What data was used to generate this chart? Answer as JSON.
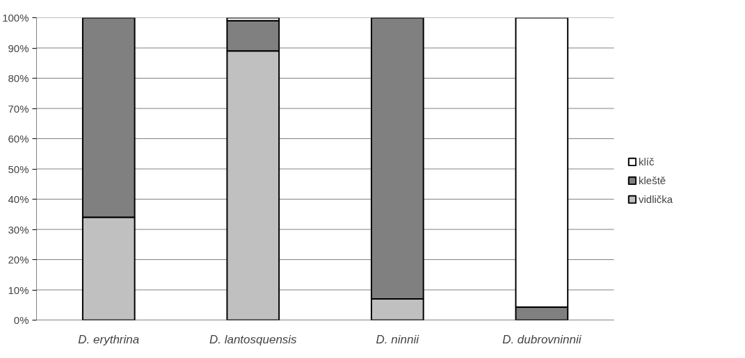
{
  "chart_data": {
    "type": "bar",
    "stacked": true,
    "categories": [
      "D. erythrina",
      "D. lantosquensis",
      "D. ninnii",
      "D. dubrovninnii"
    ],
    "series": [
      {
        "name": "vidlička",
        "color": "#c0c0c0",
        "values": [
          34,
          89,
          7,
          0
        ]
      },
      {
        "name": "kleště",
        "color": "#808080",
        "values": [
          66,
          10,
          93,
          4.3
        ]
      },
      {
        "name": "klíč",
        "color": "#ffffff",
        "values": [
          0,
          1,
          0,
          95.7
        ]
      }
    ],
    "ylim": [
      0,
      100
    ],
    "yticks": [
      {
        "value": 0,
        "label": "0%"
      },
      {
        "value": 10,
        "label": "10%"
      },
      {
        "value": 20,
        "label": "20%"
      },
      {
        "value": 30,
        "label": "30%"
      },
      {
        "value": 40,
        "label": "40%"
      },
      {
        "value": 50,
        "label": "50%"
      },
      {
        "value": 60,
        "label": "60%"
      },
      {
        "value": 70,
        "label": "70%"
      },
      {
        "value": 80,
        "label": "80%"
      },
      {
        "value": 90,
        "label": "90%"
      },
      {
        "value": 100,
        "label": "100%"
      }
    ],
    "grid": "y",
    "legend": "right"
  }
}
